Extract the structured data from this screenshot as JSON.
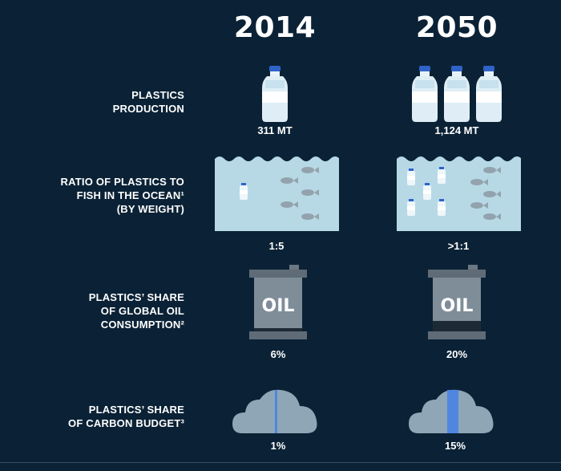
{
  "years": [
    "2014",
    "2050"
  ],
  "rows": [
    {
      "label_lines": [
        "PLASTICS",
        "PRODUCTION"
      ],
      "values": [
        "311 MT",
        "1,124 MT"
      ],
      "bottle_counts": [
        1,
        3
      ]
    },
    {
      "label_lines": [
        "RATIO OF PLASTICS TO",
        "FISH IN THE OCEAN¹",
        "(BY WEIGHT)"
      ],
      "values": [
        "1:5",
        ">1:1"
      ]
    },
    {
      "label_lines": [
        "PLASTICS’ SHARE",
        "OF GLOBAL OIL",
        "CONSUMPTION²"
      ],
      "values": [
        "6%",
        "20%"
      ],
      "barrel_text": "OIL",
      "oil_share_fraction": [
        0.06,
        0.2
      ]
    },
    {
      "label_lines": [
        "PLASTICS’ SHARE",
        "OF CARBON BUDGET³"
      ],
      "values": [
        "1%",
        "15%"
      ],
      "carbon_share_fraction": [
        0.01,
        0.15
      ]
    }
  ],
  "colors": {
    "background": "#0b2236",
    "water": "#b7d9e6",
    "bottle_cap": "#2f63c8",
    "barrel": "#7f8d99",
    "cloud": "#8fa6b6",
    "cloud_highlight": "#4f86e0"
  },
  "icons": [
    "bottle-icon",
    "fish-icon",
    "oil-barrel-icon",
    "cloud-icon"
  ]
}
